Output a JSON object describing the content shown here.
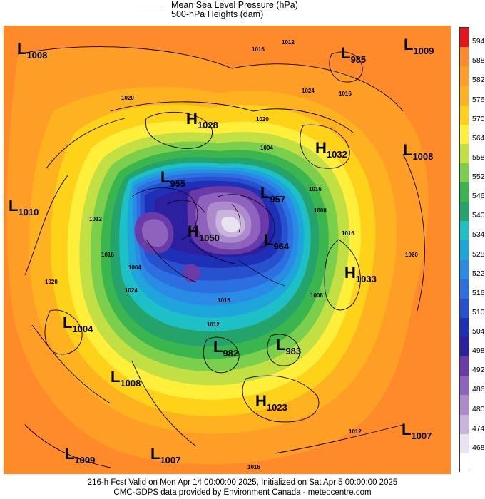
{
  "legend": {
    "line1": "Mean Sea Level Pressure (hPa)",
    "line2": "500-hPa Heights (dam)"
  },
  "pressure_centers": [
    {
      "kind": "L",
      "value": "1008"
    },
    {
      "kind": "L",
      "value": "985"
    },
    {
      "kind": "L",
      "value": "1009"
    },
    {
      "kind": "H",
      "value": "1028"
    },
    {
      "kind": "H",
      "value": "1032"
    },
    {
      "kind": "L",
      "value": "1008"
    },
    {
      "kind": "L",
      "value": "955"
    },
    {
      "kind": "L",
      "value": "1010"
    },
    {
      "kind": "L",
      "value": "957"
    },
    {
      "kind": "H",
      "value": "1050"
    },
    {
      "kind": "L",
      "value": "964"
    },
    {
      "kind": "H",
      "value": "1033"
    },
    {
      "kind": "L",
      "value": "1004"
    },
    {
      "kind": "L",
      "value": "982"
    },
    {
      "kind": "L",
      "value": "983"
    },
    {
      "kind": "L",
      "value": "1008"
    },
    {
      "kind": "H",
      "value": "1023"
    },
    {
      "kind": "L",
      "value": "1007"
    },
    {
      "kind": "L",
      "value": "1009"
    },
    {
      "kind": "L",
      "value": "1007"
    }
  ],
  "isobar_labels": [
    "1016",
    "1012",
    "1024",
    "1016",
    "1020",
    "1020",
    "1004",
    "1012",
    "1016",
    "1008",
    "1016",
    "1004",
    "1024",
    "1020",
    "1016",
    "1020",
    "1016",
    "1012",
    "1016",
    "1008",
    "1012"
  ],
  "colorbar": {
    "labels": [
      "594",
      "588",
      "582",
      "576",
      "570",
      "564",
      "558",
      "552",
      "546",
      "540",
      "534",
      "528",
      "522",
      "516",
      "510",
      "504",
      "498",
      "492",
      "486",
      "480",
      "474",
      "468"
    ],
    "colors": [
      "#e8141a",
      "#ff8a2a",
      "#ff9e26",
      "#ffb21f",
      "#ffd21a",
      "#ffee3a",
      "#c2e044",
      "#7ccf4c",
      "#3bb54e",
      "#24a36a",
      "#1ec0c8",
      "#1ea6dc",
      "#2a8be6",
      "#2c6fe0",
      "#2851cf",
      "#1f30b8",
      "#2d20a0",
      "#6a3aa8",
      "#8f62bd",
      "#ad8acc",
      "#c9b3dc",
      "#e9e2f1",
      "#ffffff"
    ]
  },
  "footer": {
    "line1": "216-h Fcst Valid on Mon Apr 14 00:00:00 2025, Initialized on Sat Apr  5 00:00:00 2025",
    "line2": "CMC-GDPS data provided by Environment Canada - meteocentre.com"
  }
}
